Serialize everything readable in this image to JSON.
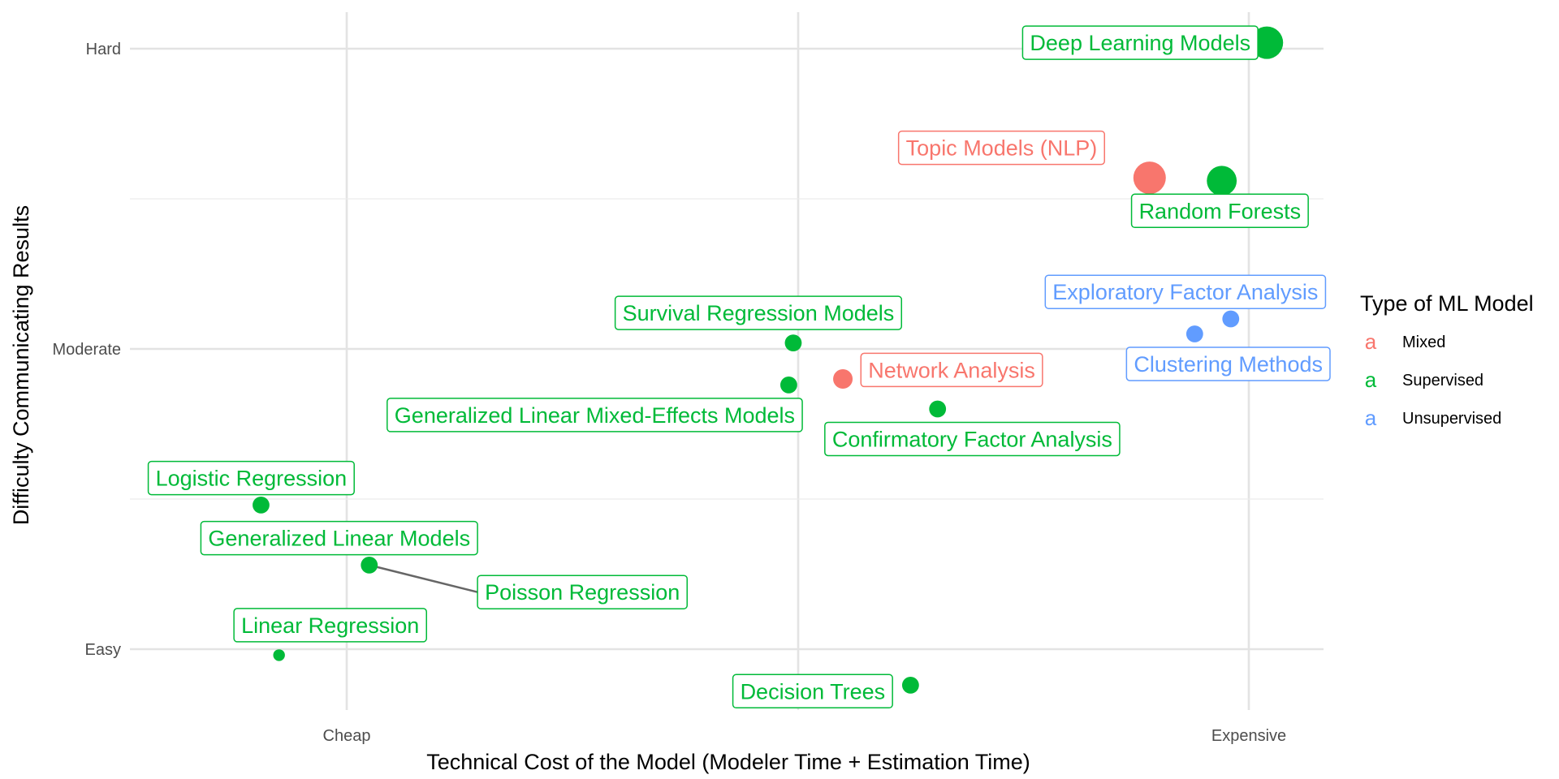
{
  "chart_data": {
    "type": "scatter",
    "title": "",
    "xlabel": "Technical Cost of the Model (Modeler Time + Estimation Time)",
    "ylabel": "Difficulty Communicating Results",
    "xlim": [
      0.52,
      3.15
    ],
    "ylim": [
      0.8,
      3.12
    ],
    "x_ticks": [
      {
        "value": 1,
        "label": "Cheap"
      },
      {
        "value": 2,
        "label": "Expensive"
      }
    ],
    "x_gridlines": [
      1,
      1.5,
      2,
      2.5,
      3
    ],
    "x_labels_at": [
      1,
      3
    ],
    "y_ticks": [
      {
        "value": 1,
        "label": "Easy"
      },
      {
        "value": 2,
        "label": "Moderate"
      },
      {
        "value": 3,
        "label": "Hard"
      }
    ],
    "y_gridlines": [
      1,
      1.5,
      2,
      2.5,
      3
    ],
    "grid": true,
    "legend": {
      "title": "Type of ML Model",
      "position": "right",
      "key_glyph": "a",
      "entries": [
        {
          "name": "Mixed",
          "color": "#F8766D"
        },
        {
          "name": "Supervised",
          "color": "#00BA38"
        },
        {
          "name": "Unsupervised",
          "color": "#619CFF"
        }
      ]
    },
    "points": [
      {
        "label": "Deep Learning Models",
        "x": 3.04,
        "y": 3.02,
        "type": "Supervised",
        "size": 5,
        "label_anchor": "right",
        "label_dx": -0.02,
        "label_dy": -0.0
      },
      {
        "label": "Topic Models (NLP)",
        "x": 2.78,
        "y": 2.57,
        "type": "Mixed",
        "size": 5,
        "label_anchor": "right",
        "label_dx": -0.1,
        "label_dy": 0.1
      },
      {
        "label": "Random Forests",
        "x": 2.94,
        "y": 2.56,
        "type": "Supervised",
        "size": 4.5,
        "label_anchor": "left",
        "label_dx": -0.2,
        "label_dy": -0.1
      },
      {
        "label": "Exploratory Factor Analysis",
        "x": 2.96,
        "y": 2.1,
        "type": "Unsupervised",
        "size": 2,
        "label_anchor": "right",
        "label_dx": 0.21,
        "label_dy": 0.09
      },
      {
        "label": "Clustering Methods",
        "x": 2.88,
        "y": 2.05,
        "type": "Unsupervised",
        "size": 2,
        "label_anchor": "right",
        "label_dx": 0.3,
        "label_dy": -0.1
      },
      {
        "label": "Survival Regression Models",
        "x": 1.99,
        "y": 2.02,
        "type": "Supervised",
        "size": 2,
        "label_anchor": "right",
        "label_dx": 0.24,
        "label_dy": 0.1
      },
      {
        "label": "Network Analysis",
        "x": 2.1,
        "y": 1.9,
        "type": "Mixed",
        "size": 2.5,
        "label_anchor": "left",
        "label_dx": 0.04,
        "label_dy": 0.03
      },
      {
        "label": "Generalized Linear Mixed-Effects Models",
        "x": 1.98,
        "y": 1.88,
        "type": "Supervised",
        "size": 2,
        "label_anchor": "right",
        "label_dx": 0.03,
        "label_dy": -0.1
      },
      {
        "label": "Confirmatory Factor Analysis",
        "x": 2.31,
        "y": 1.8,
        "type": "Supervised",
        "size": 2,
        "label_anchor": "left",
        "label_dx": -0.25,
        "label_dy": -0.1
      },
      {
        "label": "Logistic Regression",
        "x": 0.81,
        "y": 1.48,
        "type": "Supervised",
        "size": 2,
        "label_anchor": "left",
        "label_dx": -0.25,
        "label_dy": 0.09
      },
      {
        "label": "Generalized Linear Models",
        "x": 1.05,
        "y": 1.28,
        "type": "Supervised",
        "size": 2,
        "label_anchor": "right",
        "label_dx": 0.24,
        "label_dy": 0.09
      },
      {
        "label": "Poisson Regression",
        "x": 1.05,
        "y": 1.28,
        "type": "Supervised",
        "size": 2,
        "label_anchor": "left",
        "label_dx": 0.24,
        "label_dy": -0.09,
        "leader": true
      },
      {
        "label": "Linear Regression",
        "x": 0.85,
        "y": 0.98,
        "type": "Supervised",
        "size": 1,
        "label_anchor": "left",
        "label_dx": -0.1,
        "label_dy": 0.1
      },
      {
        "label": "Decision Trees",
        "x": 2.25,
        "y": 0.88,
        "type": "Supervised",
        "size": 2,
        "label_anchor": "right",
        "label_dx": -0.04,
        "label_dy": -0.02
      }
    ]
  }
}
